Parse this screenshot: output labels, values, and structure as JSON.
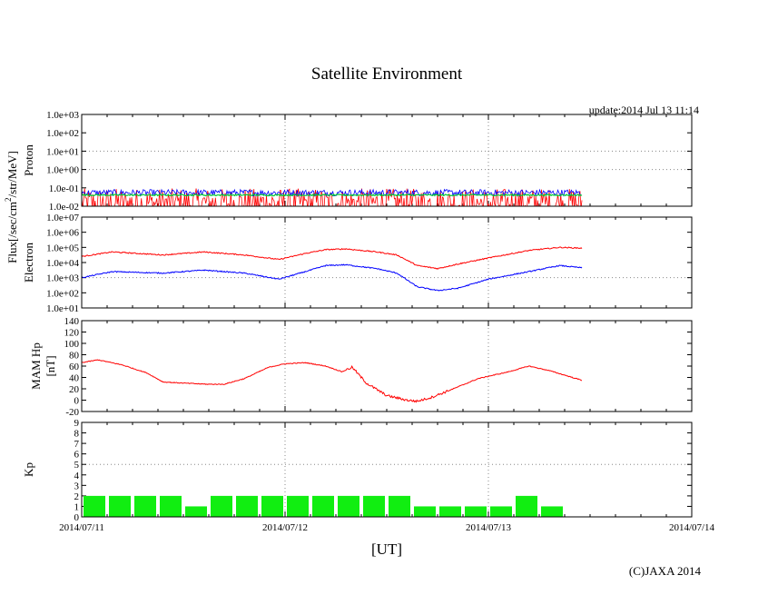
{
  "chart_data": {
    "type": "line",
    "title": "Satellite Environment",
    "update_label": "update:2014 Jul 13 11:14",
    "xlabel": "[UT]",
    "copyright": "(C)JAXA 2014",
    "shared_flux_label": "Flux[/sec/cm",
    "shared_flux_sup": "2",
    "shared_flux_tail": "/str/MeV]",
    "x_ticks": [
      "2014/07/11",
      "2014/07/12",
      "2014/07/13",
      "2014/07/14"
    ],
    "x_range_days": [
      0,
      3
    ],
    "panels": [
      {
        "id": "proton",
        "ylabel": "Proton",
        "scale": "log",
        "ylim": [
          -2,
          3
        ],
        "tick_labels": [
          "1.0e-02",
          "1.0e-01",
          "1.0e+00",
          "1.0e+01",
          "1.0e+02",
          "1.0e+03"
        ],
        "series": [
          {
            "name": "proton-low",
            "color": "#ff0000",
            "data_end_day": 2.46,
            "base_log": -2.0,
            "spread": 0.9
          },
          {
            "name": "proton-mid",
            "color": "#0000ff",
            "data_end_day": 2.46,
            "base_log": -1.3,
            "spread": 0.35
          },
          {
            "name": "proton-high",
            "color": "#00cc33",
            "data_end_day": 2.46,
            "base_log": -1.4,
            "spread": 0.08
          }
        ]
      },
      {
        "id": "electron",
        "ylabel": "Electron",
        "scale": "log",
        "ylim": [
          1,
          7
        ],
        "tick_labels": [
          "1.0e+01",
          "1.0e+02",
          "1.0e+03",
          "1.0e+04",
          "1.0e+05",
          "1.0e+06",
          "1.0e+07"
        ],
        "series": [
          {
            "name": "electron-high-energy",
            "color": "#ff0000",
            "x": [
              0.0,
              0.15,
              0.4,
              0.6,
              0.8,
              0.97,
              1.1,
              1.2,
              1.3,
              1.45,
              1.55,
              1.65,
              1.75,
              1.85,
              2.0,
              2.2,
              2.35,
              2.46
            ],
            "y": [
              4.4,
              4.7,
              4.5,
              4.7,
              4.5,
              4.2,
              4.6,
              4.85,
              4.9,
              4.7,
              4.5,
              3.8,
              3.6,
              3.9,
              4.3,
              4.8,
              5.0,
              4.95
            ]
          },
          {
            "name": "electron-low-energy",
            "color": "#0000ff",
            "x": [
              0.0,
              0.15,
              0.4,
              0.6,
              0.8,
              0.97,
              1.1,
              1.2,
              1.3,
              1.45,
              1.55,
              1.65,
              1.75,
              1.85,
              2.0,
              2.2,
              2.35,
              2.46
            ],
            "y": [
              3.0,
              3.4,
              3.3,
              3.5,
              3.3,
              2.9,
              3.4,
              3.8,
              3.85,
              3.6,
              3.3,
              2.4,
              2.15,
              2.3,
              2.9,
              3.4,
              3.8,
              3.65
            ]
          }
        ]
      },
      {
        "id": "mam-hp",
        "ylabel": "MAM Hp",
        "ylabel2": "[nT]",
        "scale": "linear",
        "ylim": [
          -20,
          140
        ],
        "tick_labels": [
          "-20",
          "0",
          "20",
          "40",
          "60",
          "80",
          "100",
          "120",
          "140"
        ],
        "series": [
          {
            "name": "hp",
            "color": "#ff0000",
            "x": [
              0.0,
              0.08,
              0.2,
              0.32,
              0.4,
              0.5,
              0.62,
              0.7,
              0.8,
              0.92,
              1.0,
              1.1,
              1.2,
              1.28,
              1.33,
              1.4,
              1.5,
              1.6,
              1.65,
              1.72,
              1.8,
              1.95,
              2.1,
              2.2,
              2.3,
              2.46
            ],
            "y": [
              66,
              71,
              62,
              48,
              32,
              30,
              28,
              28,
              38,
              58,
              64,
              66,
              60,
              50,
              58,
              30,
              8,
              0,
              -2,
              5,
              16,
              38,
              50,
              60,
              52,
              35
            ]
          }
        ]
      },
      {
        "id": "kp",
        "ylabel": "Kp",
        "scale": "linear",
        "ylim": [
          0,
          9
        ],
        "tick_labels": [
          "0",
          "1",
          "2",
          "3",
          "4",
          "5",
          "6",
          "7",
          "8",
          "9"
        ],
        "bar_color": "#11ee11",
        "bar_width_days": 0.125,
        "bars": [
          2,
          2,
          2,
          2,
          1,
          2,
          2,
          2,
          2,
          2,
          2,
          2,
          2,
          1,
          1,
          1,
          1,
          2,
          1
        ]
      }
    ]
  }
}
